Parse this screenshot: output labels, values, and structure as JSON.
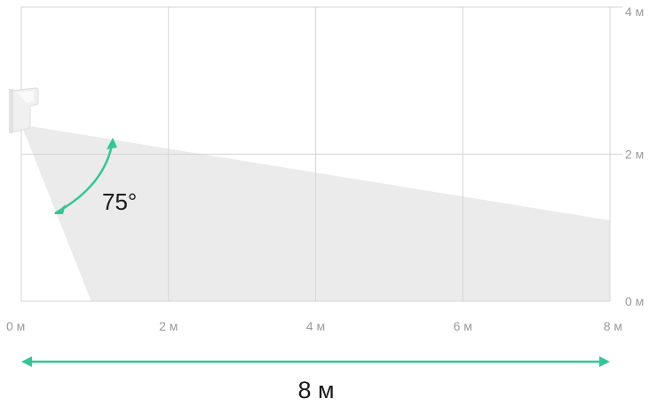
{
  "diagram": {
    "x_axis": {
      "unit": "м",
      "range": [
        0,
        8
      ],
      "ticks": [
        0,
        2,
        4,
        6,
        8
      ],
      "labels": [
        "0 м",
        "2 м",
        "4 м",
        "6 м",
        "8 м"
      ]
    },
    "y_axis": {
      "unit": "м",
      "range": [
        0,
        4
      ],
      "ticks": [
        0,
        2,
        4
      ],
      "labels": [
        "0 м",
        "2 м",
        "4 м"
      ],
      "side": "right"
    },
    "grid": true,
    "sensor": {
      "mount_height_m": 2.4,
      "icon": "motion-sensor-icon"
    },
    "detection_zone": {
      "upper_edge": [
        [
          0,
          2.4
        ],
        [
          8,
          1.1
        ]
      ],
      "lower_edge": [
        [
          0,
          2.4
        ],
        [
          0.95,
          0
        ]
      ],
      "fill_color": "#ebebeb"
    },
    "angle_label": "75°",
    "distance_label": "8 м",
    "accent_color": "#2fc893",
    "grid_color": "#d6d6d6"
  }
}
